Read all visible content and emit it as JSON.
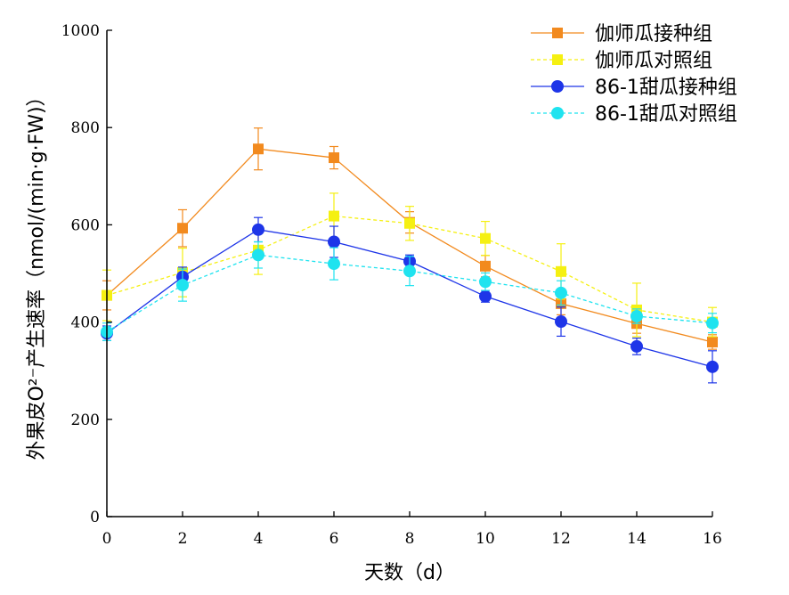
{
  "chart_data": {
    "type": "line",
    "title": "",
    "xlabel": "天数（d）",
    "ylabel": "外果皮O²⁻产生速率（nmol/(min·g·FW)）",
    "xlim": [
      0,
      16
    ],
    "ylim": [
      0,
      1000
    ],
    "x": [
      0,
      2,
      4,
      6,
      8,
      10,
      12,
      14,
      16
    ],
    "x_ticks": [
      "0",
      "2",
      "4",
      "6",
      "8",
      "10",
      "12",
      "14",
      "16"
    ],
    "y_ticks": [
      "0",
      "200",
      "400",
      "600",
      "800",
      "1000"
    ],
    "grid": false,
    "legend_position": "top-right",
    "series": [
      {
        "name": "伽师瓜接种组",
        "color": "#F28A1E",
        "marker": "square",
        "line_style": "solid",
        "values": [
          455,
          593,
          756,
          738,
          605,
          515,
          438,
          397,
          359
        ],
        "errors": [
          30,
          38,
          43,
          23,
          22,
          22,
          23,
          20,
          15
        ]
      },
      {
        "name": "伽师瓜对照组",
        "color": "#F5F011",
        "marker": "square",
        "line_style": "dashed",
        "values": [
          455,
          502,
          548,
          618,
          603,
          572,
          504,
          425,
          400
        ],
        "errors": [
          52,
          50,
          50,
          47,
          35,
          35,
          57,
          55,
          30
        ]
      },
      {
        "name": "86-1甜瓜接种组",
        "color": "#1E35E8",
        "marker": "circle",
        "line_style": "solid",
        "values": [
          377,
          493,
          590,
          565,
          525,
          453,
          401,
          350,
          308
        ],
        "errors": [
          15,
          20,
          25,
          32,
          13,
          12,
          30,
          17,
          33
        ]
      },
      {
        "name": "86-1甜瓜对照组",
        "color": "#1FE3EF",
        "marker": "circle",
        "line_style": "dashed",
        "values": [
          380,
          476,
          538,
          520,
          505,
          483,
          460,
          412,
          398
        ],
        "errors": [
          18,
          33,
          27,
          33,
          30,
          18,
          25,
          15,
          20
        ]
      }
    ]
  }
}
